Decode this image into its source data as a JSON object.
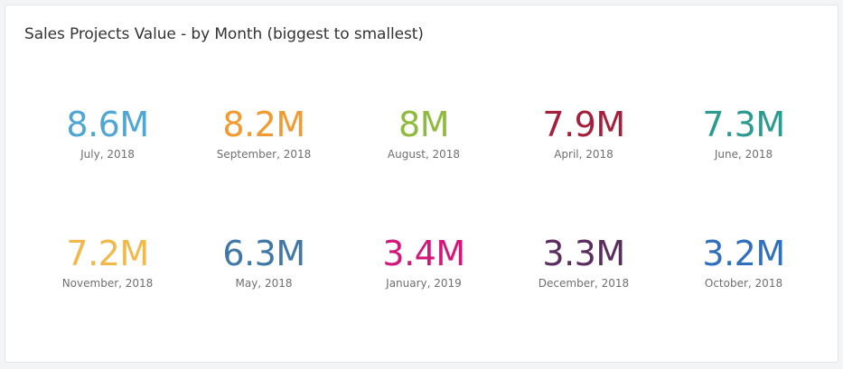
{
  "widget": {
    "title": "Sales Projects Value - by Month (biggest to smallest)"
  },
  "kpis": [
    {
      "value": "8.6M",
      "label": "July, 2018",
      "color": "#4ea6d4"
    },
    {
      "value": "8.2M",
      "label": "September, 2018",
      "color": "#f19a2f"
    },
    {
      "value": "8M",
      "label": "August, 2018",
      "color": "#8fba3e"
    },
    {
      "value": "7.9M",
      "label": "April, 2018",
      "color": "#a51e3a"
    },
    {
      "value": "7.3M",
      "label": "June, 2018",
      "color": "#2b9b8f"
    },
    {
      "value": "7.2M",
      "label": "November, 2018",
      "color": "#f2b94a"
    },
    {
      "value": "6.3M",
      "label": "May, 2018",
      "color": "#3f78a8"
    },
    {
      "value": "3.4M",
      "label": "January, 2019",
      "color": "#d4157a"
    },
    {
      "value": "3.3M",
      "label": "December, 2018",
      "color": "#5a2d5e"
    },
    {
      "value": "3.2M",
      "label": "October, 2018",
      "color": "#2f6fbd"
    }
  ]
}
